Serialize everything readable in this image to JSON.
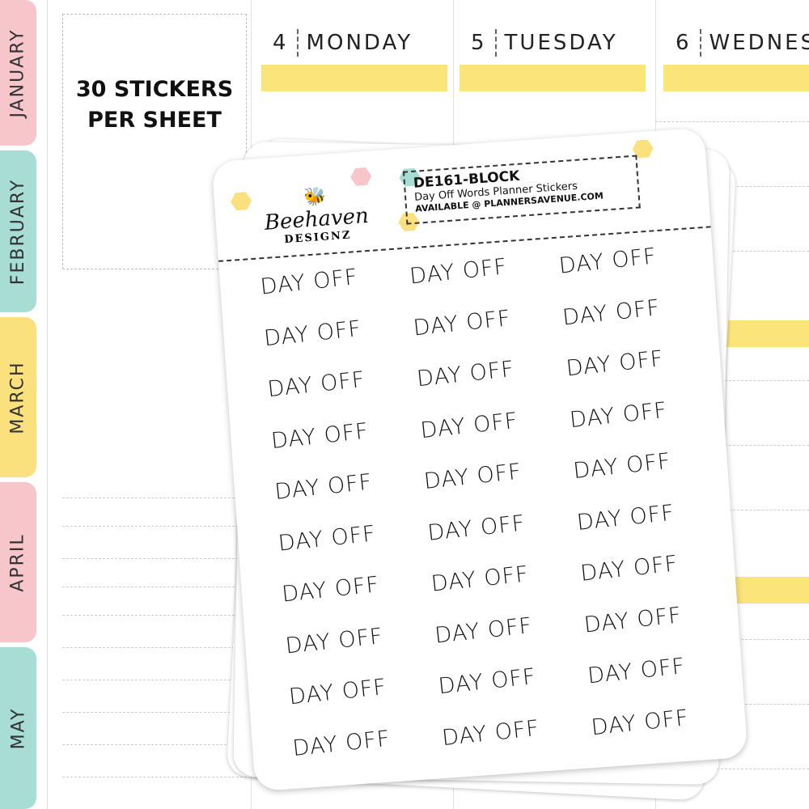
{
  "tabs": [
    {
      "label": "JANUARY",
      "color": "#f7c6cb"
    },
    {
      "label": "FEBRUARY",
      "color": "#a8ddd5"
    },
    {
      "label": "MARCH",
      "color": "#fbe17d"
    },
    {
      "label": "APRIL",
      "color": "#f7c6cb"
    },
    {
      "label": "MAY",
      "color": "#a8ddd5"
    }
  ],
  "promo": {
    "line1": "30 STICKERS",
    "line2": "PER SHEET"
  },
  "days": [
    {
      "num": "4",
      "name": "MONDAY"
    },
    {
      "num": "5",
      "name": "TUESDAY"
    },
    {
      "num": "6",
      "name": "WEDNES"
    }
  ],
  "accent": "#fbe47a",
  "sheet": {
    "logo_line1": "Beehaven",
    "logo_line2": "DESIGNZ",
    "code": "DE161-BLOCK",
    "title": "Day Off Words Planner Stickers",
    "available": "AVAILABLE @ PLANNERSAVENUE.COM",
    "sticker_text": "DAY OFF",
    "sticker_count": 30
  }
}
